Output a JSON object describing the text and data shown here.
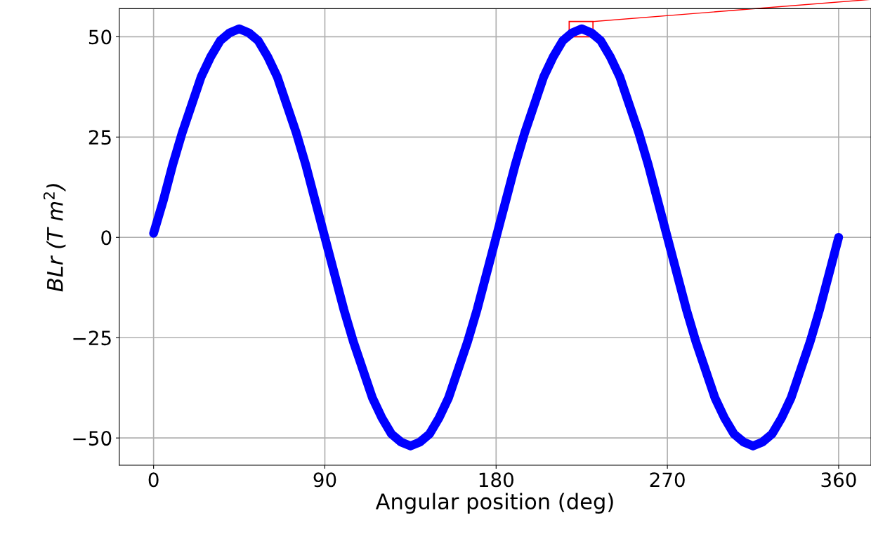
{
  "chart_data": {
    "type": "line",
    "xlabel": "Angular position (deg)",
    "ylabel": "BLr (T m$^{2}$)",
    "series": [
      {
        "color": "#0000ff",
        "x": [
          0,
          5,
          10,
          15,
          20,
          25,
          30,
          35,
          40,
          45,
          50,
          55,
          60,
          65,
          70,
          75,
          80,
          85,
          90,
          95,
          100,
          105,
          110,
          115,
          120,
          125,
          130,
          135,
          140,
          145,
          150,
          155,
          160,
          165,
          170,
          175,
          180,
          185,
          190,
          195,
          200,
          205,
          210,
          215,
          220,
          225,
          230,
          235,
          240,
          245,
          250,
          255,
          260,
          265,
          270,
          275,
          280,
          285,
          290,
          295,
          300,
          305,
          310,
          315,
          320,
          325,
          330,
          335,
          340,
          345,
          350,
          355,
          360
        ],
        "values": [
          1,
          9,
          18,
          26,
          33,
          40,
          45,
          49,
          51,
          52,
          51,
          49,
          45,
          40,
          33,
          26,
          18,
          9,
          0,
          -9,
          -18,
          -26,
          -33,
          -40,
          -45,
          -49,
          -51,
          -52,
          -51,
          -49,
          -45,
          -40,
          -33,
          -26,
          -18,
          -9,
          0,
          9,
          18,
          26,
          33,
          40,
          45,
          49,
          51,
          52,
          51,
          49,
          45,
          40,
          33,
          26,
          18,
          9,
          0,
          -9,
          -18,
          -26,
          -33,
          -40,
          -45,
          -49,
          -51,
          -52,
          -51,
          -49,
          -45,
          -40,
          -33,
          -26,
          -18,
          -9,
          0
        ]
      }
    ],
    "xlim": [
      -18,
      377
    ],
    "xticks": [
      0,
      90,
      180,
      270,
      360
    ],
    "ylim": [
      -56.8,
      57
    ],
    "yticks": [
      {
        "value": 50,
        "label": "50"
      },
      {
        "value": 25,
        "label": "25"
      },
      {
        "value": 0,
        "label": "0"
      },
      {
        "value": -25,
        "label": "−25"
      },
      {
        "value": -50,
        "label": "−50"
      }
    ],
    "grid": true,
    "line_style": "solid"
  }
}
